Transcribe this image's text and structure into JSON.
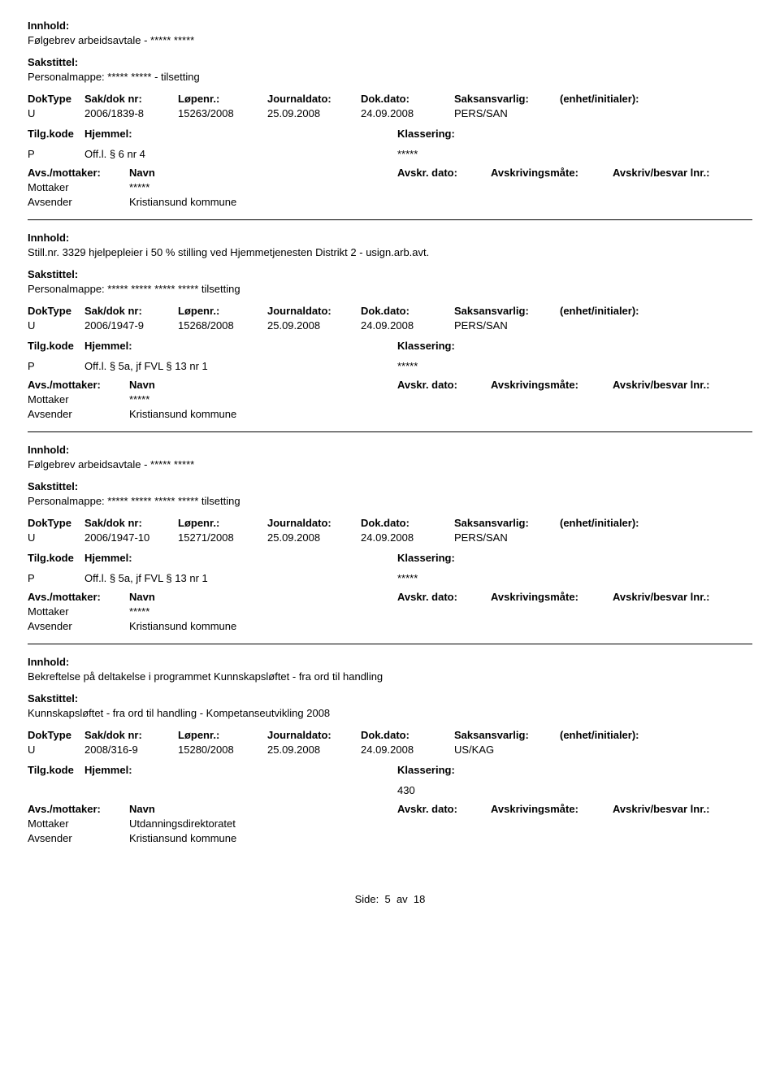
{
  "labels": {
    "innhold": "Innhold:",
    "sakstittel": "Sakstittel:",
    "doktype": "DokType",
    "sakdoknr": "Sak/dok nr:",
    "lopenr": "Løpenr.:",
    "journaldato": "Journaldato:",
    "dokdato": "Dok.dato:",
    "saksansvarlig": "Saksansvarlig:",
    "enhet": "(enhet/initialer):",
    "tilgkode": "Tilg.kode",
    "hjemmel": "Hjemmel:",
    "klassering": "Klassering:",
    "avsmottaker": "Avs./mottaker:",
    "navn": "Navn",
    "avskrdato": "Avskr. dato:",
    "avskrmate": "Avskrivingsmåte:",
    "avskrbesvar": "Avskriv/besvar lnr.:",
    "mottaker": "Mottaker",
    "avsender": "Avsender"
  },
  "entries": [
    {
      "innhold": "Følgebrev arbeidsavtale - ***** *****",
      "sakstittel": "Personalmappe: ***** ***** - tilsetting",
      "doktype": "U",
      "sakdoknr": "2006/1839-8",
      "lopenr": "15263/2008",
      "journaldato": "25.09.2008",
      "dokdato": "24.09.2008",
      "saksansvarlig": "PERS/SAN",
      "enhet": "",
      "tilgkode": "P",
      "hjemmel": "Off.l. § 6 nr 4",
      "klassering": "*****",
      "mottaker_navn": "*****",
      "avsender_navn": "Kristiansund kommune"
    },
    {
      "innhold": "Still.nr. 3329 hjelpepleier i 50 % stilling ved Hjemmetjenesten Distrikt 2 - usign.arb.avt.",
      "sakstittel": "Personalmappe: ***** ***** ***** ***** tilsetting",
      "doktype": "U",
      "sakdoknr": "2006/1947-9",
      "lopenr": "15268/2008",
      "journaldato": "25.09.2008",
      "dokdato": "24.09.2008",
      "saksansvarlig": "PERS/SAN",
      "enhet": "",
      "tilgkode": "P",
      "hjemmel": "Off.l. § 5a, jf FVL § 13 nr 1",
      "klassering": "*****",
      "mottaker_navn": "*****",
      "avsender_navn": "Kristiansund kommune"
    },
    {
      "innhold": "Følgebrev arbeidsavtale - ***** *****",
      "sakstittel": "Personalmappe: ***** ***** ***** ***** tilsetting",
      "doktype": "U",
      "sakdoknr": "2006/1947-10",
      "lopenr": "15271/2008",
      "journaldato": "25.09.2008",
      "dokdato": "24.09.2008",
      "saksansvarlig": "PERS/SAN",
      "enhet": "",
      "tilgkode": "P",
      "hjemmel": "Off.l. § 5a, jf FVL § 13 nr 1",
      "klassering": "*****",
      "mottaker_navn": "*****",
      "avsender_navn": "Kristiansund kommune"
    },
    {
      "innhold": "Bekreftelse på deltakelse i programmet Kunnskapsløftet - fra ord til handling",
      "sakstittel": "Kunnskapsløftet - fra ord til handling - Kompetanseutvikling 2008",
      "doktype": "U",
      "sakdoknr": "2008/316-9",
      "lopenr": "15280/2008",
      "journaldato": "25.09.2008",
      "dokdato": "24.09.2008",
      "saksansvarlig": "US/KAG",
      "enhet": "",
      "tilgkode": "",
      "hjemmel": "",
      "klassering": "430",
      "mottaker_navn": "Utdanningsdirektoratet",
      "avsender_navn": "Kristiansund kommune"
    }
  ],
  "footer": {
    "side_label": "Side:",
    "page": "5",
    "sep": "av",
    "total": "18"
  }
}
